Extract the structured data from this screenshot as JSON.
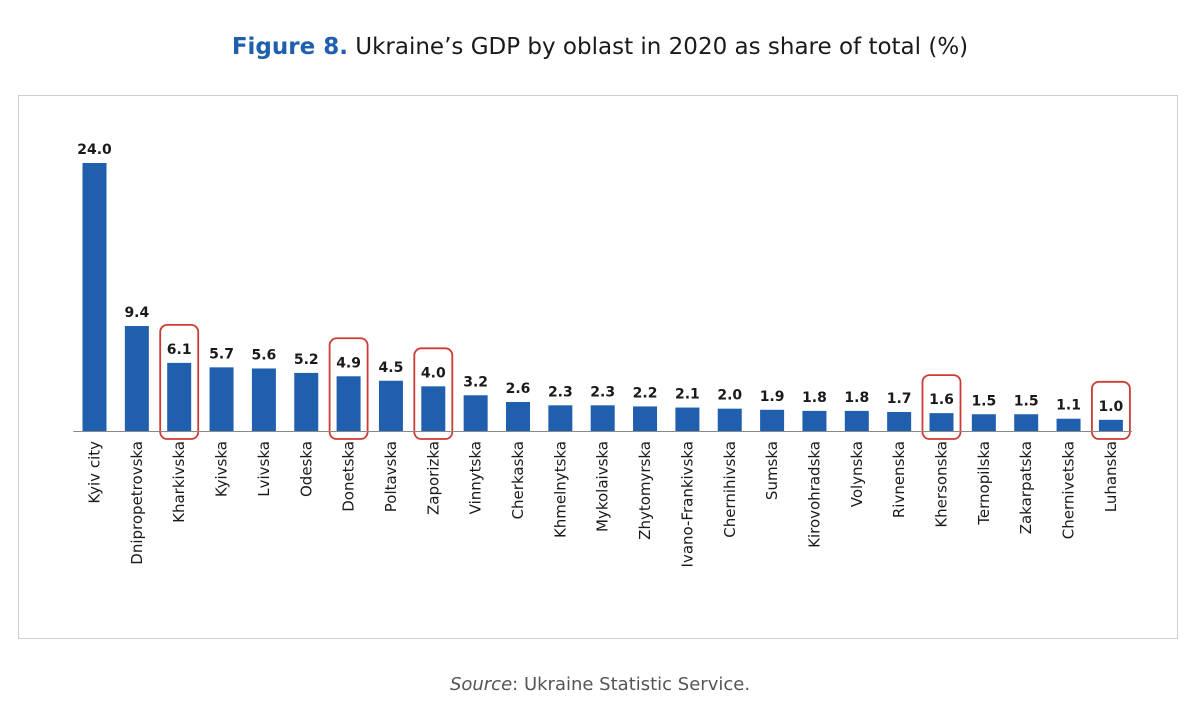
{
  "title": {
    "figure_label": "Figure 8.",
    "text": "Ukraine’s GDP by oblast in 2020 as share of total (%)"
  },
  "source": {
    "label": "Source",
    "text": ": Ukraine Statistic Service."
  },
  "colors": {
    "bar": "#1f5fad",
    "highlight_box": "#cc3b34",
    "axis": "#888888"
  },
  "chart_data": {
    "type": "bar",
    "title": "Ukraine’s GDP by oblast in 2020 as share of total (%)",
    "xlabel": "",
    "ylabel": "",
    "ylim": [
      0,
      24
    ],
    "grid": false,
    "legend": "none",
    "categories": [
      "Kyiv city",
      "Dnipropetrovska",
      "Kharkivska",
      "Kyivska",
      "Lvivska",
      "Odeska",
      "Donetska",
      "Poltavska",
      "Zaporizka",
      "Vinnytska",
      "Cherkaska",
      "Khmelnytska",
      "Mykolaivska",
      "Zhytomyrska",
      "Ivano-Frankivska",
      "Chernihivska",
      "Sumska",
      "Kirovohradska",
      "Volynska",
      "Rivnenska",
      "Khersonska",
      "Ternopilska",
      "Zakarpatska",
      "Chernivetska",
      "Luhanska"
    ],
    "values": [
      24.0,
      9.4,
      6.1,
      5.7,
      5.6,
      5.2,
      4.9,
      4.5,
      4.0,
      3.2,
      2.6,
      2.3,
      2.3,
      2.2,
      2.1,
      2.0,
      1.9,
      1.8,
      1.8,
      1.7,
      1.6,
      1.5,
      1.5,
      1.1,
      1.0
    ],
    "value_labels": [
      "24.0",
      "9.4",
      "6.1",
      "5.7",
      "5.6",
      "5.2",
      "4.9",
      "4.5",
      "4.0",
      "3.2",
      "2.6",
      "2.3",
      "2.3",
      "2.2",
      "2.1",
      "2.0",
      "1.9",
      "1.8",
      "1.8",
      "1.7",
      "1.6",
      "1.5",
      "1.5",
      "1.1",
      "1.0"
    ],
    "highlighted": [
      "Kharkivska",
      "Donetska",
      "Zaporizka",
      "Khersonska",
      "Luhanska"
    ]
  }
}
